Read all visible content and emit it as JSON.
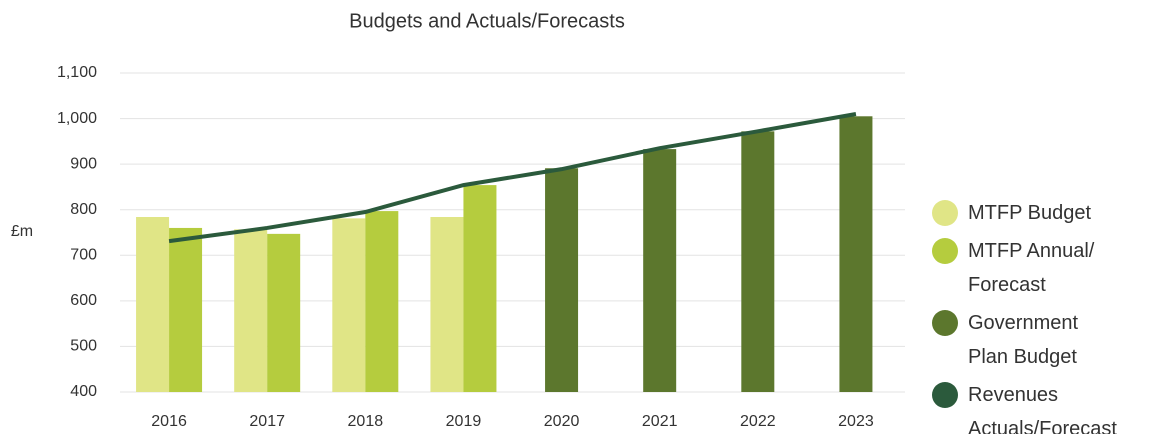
{
  "chart_data": {
    "type": "bar",
    "title": "Budgets and Actuals/Forecasts",
    "y_label": "£m",
    "categories": [
      "2016",
      "2017",
      "2018",
      "2019",
      "2020",
      "2021",
      "2022",
      "2023"
    ],
    "series": [
      {
        "name": "MTFP Budget",
        "color": "#e0e586",
        "type": "bar",
        "values": [
          784,
          757,
          781,
          784,
          null,
          null,
          null,
          null
        ]
      },
      {
        "name": "MTFP Annual/ Forecast",
        "color": "#b5cc3e",
        "type": "bar",
        "values": [
          760,
          747,
          797,
          854,
          null,
          null,
          null,
          null
        ]
      },
      {
        "name": "Government Plan Budget",
        "color": "#5c772d",
        "type": "bar",
        "values": [
          null,
          null,
          null,
          null,
          891,
          933,
          972,
          1005
        ]
      },
      {
        "name": "Revenues Actuals/Forecast",
        "color": "#2b5a3c",
        "type": "line",
        "values": [
          731,
          760,
          795,
          854,
          889,
          935,
          972,
          1010
        ]
      }
    ],
    "ylim": [
      400,
      1100
    ],
    "yticks": [
      400,
      500,
      600,
      700,
      800,
      900,
      {
        "value": 1000,
        "label": "1,000"
      },
      {
        "value": 1100,
        "label": "1,100"
      }
    ],
    "grid": true,
    "legend": "right"
  }
}
